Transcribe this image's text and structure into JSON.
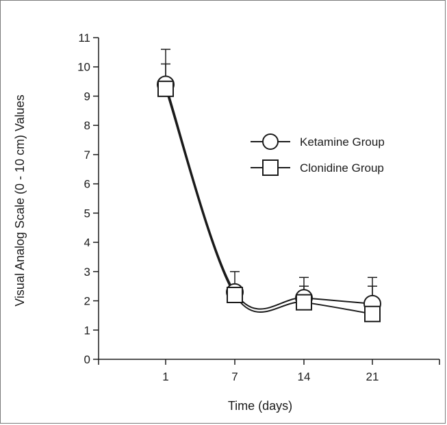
{
  "chart_data": {
    "type": "line",
    "title": "",
    "xlabel": "Time (days)",
    "ylabel": "Visual Analog Scale (0 - 10 cm) Values",
    "x_tick_labels": [
      "1",
      "7",
      "14",
      "21"
    ],
    "y_tick_labels": [
      "0",
      "1",
      "2",
      "3",
      "4",
      "5",
      "6",
      "7",
      "8",
      "9",
      "10",
      "11"
    ],
    "ylim": [
      0,
      11
    ],
    "grid": false,
    "legend_position": "center-right",
    "series": [
      {
        "name": "Ketamine Group",
        "marker": "circle",
        "x": [
          "1",
          "7",
          "14",
          "21"
        ],
        "values": [
          9.4,
          2.3,
          2.1,
          1.9
        ],
        "error_upper": [
          10.6,
          3.0,
          2.8,
          2.8
        ]
      },
      {
        "name": "Clonidine Group",
        "marker": "square",
        "x": [
          "1",
          "7",
          "14",
          "21"
        ],
        "values": [
          9.25,
          2.2,
          1.95,
          1.55
        ],
        "error_upper": [
          10.1,
          2.5,
          2.5,
          2.5
        ]
      }
    ],
    "colors": {
      "line": "#1a1a1a",
      "marker_fill": "#ffffff"
    }
  }
}
